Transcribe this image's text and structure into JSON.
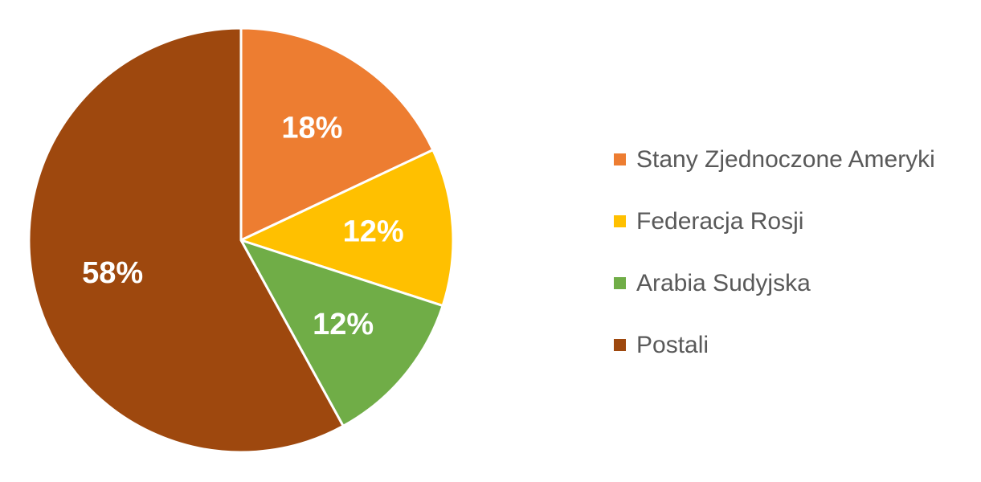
{
  "chart_data": {
    "type": "pie",
    "title": "",
    "categories": [
      "Stany Zjednoczone Ameryki",
      "Federacja Rosji",
      "Arabia Sudyjska",
      "Postali"
    ],
    "values": [
      18,
      12,
      12,
      58
    ],
    "value_labels": [
      "18%",
      "12%",
      "12%",
      "58%"
    ],
    "colors": [
      "#ED7D31",
      "#FFC000",
      "#70AD47",
      "#9E480E"
    ],
    "start_angle": "12 o'clock",
    "direction": "clockwise",
    "slice_border_color": "#FFFFFF",
    "label_color": "#FFFFFF",
    "legend_position": "right",
    "legend_text_color": "#595959"
  }
}
